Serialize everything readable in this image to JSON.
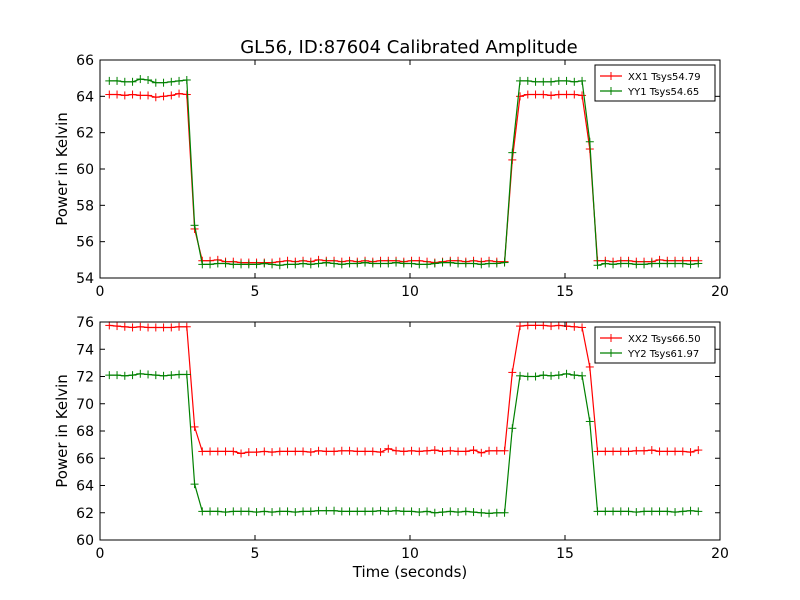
{
  "chart_data": [
    {
      "type": "line",
      "title": "GL56, ID:87604 Calibrated Amplitude",
      "xlabel": "",
      "ylabel": "Power in Kelvin",
      "xlim": [
        0,
        20
      ],
      "ylim": [
        54,
        66
      ],
      "xticks": [
        0,
        5,
        10,
        15,
        20
      ],
      "yticks": [
        54,
        56,
        58,
        60,
        62,
        64,
        66
      ],
      "grid": false,
      "legend": "top-right",
      "x": [
        0.3,
        0.55,
        0.8,
        1.05,
        1.3,
        1.55,
        1.8,
        2.05,
        2.3,
        2.55,
        2.8,
        3.05,
        3.3,
        3.55,
        3.8,
        4.05,
        4.3,
        4.55,
        4.8,
        5.05,
        5.3,
        5.55,
        5.8,
        6.05,
        6.3,
        6.55,
        6.8,
        7.05,
        7.3,
        7.55,
        7.8,
        8.05,
        8.3,
        8.55,
        8.8,
        9.05,
        9.3,
        9.55,
        9.8,
        10.05,
        10.3,
        10.55,
        10.8,
        11.05,
        11.3,
        11.55,
        11.8,
        12.05,
        12.3,
        12.55,
        12.8,
        13.05,
        13.3,
        13.55,
        13.8,
        14.05,
        14.3,
        14.55,
        14.8,
        15.05,
        15.3,
        15.55,
        15.8,
        16.05,
        16.3,
        16.55,
        16.8,
        17.05,
        17.3,
        17.55,
        17.8,
        18.05,
        18.3,
        18.55,
        18.8,
        19.05,
        19.3
      ],
      "series": [
        {
          "name": "XX1 Tsys54.79",
          "color": "#ff0000",
          "values": [
            64.1,
            64.1,
            64.05,
            64.1,
            64.05,
            64.05,
            63.95,
            64.0,
            64.05,
            64.15,
            64.1,
            56.7,
            54.95,
            54.95,
            55.0,
            54.9,
            54.9,
            54.85,
            54.85,
            54.85,
            54.85,
            54.85,
            54.9,
            54.95,
            54.9,
            54.95,
            54.9,
            55.0,
            54.95,
            54.95,
            54.9,
            54.95,
            54.9,
            54.95,
            54.9,
            54.95,
            54.95,
            54.95,
            54.9,
            54.95,
            54.95,
            54.9,
            54.85,
            54.9,
            54.95,
            54.95,
            54.9,
            54.95,
            54.9,
            54.95,
            54.9,
            54.9,
            60.5,
            64.0,
            64.1,
            64.1,
            64.1,
            64.05,
            64.1,
            64.1,
            64.1,
            64.05,
            61.1,
            54.95,
            54.95,
            54.9,
            54.95,
            54.95,
            54.9,
            54.9,
            54.9,
            55.0,
            54.95,
            54.95,
            54.95,
            54.95,
            54.95
          ]
        },
        {
          "name": "YY1 Tsys54.65",
          "color": "#008000",
          "values": [
            64.85,
            64.85,
            64.8,
            64.8,
            64.95,
            64.9,
            64.75,
            64.75,
            64.8,
            64.85,
            64.9,
            56.9,
            54.75,
            54.75,
            54.8,
            54.8,
            54.75,
            54.75,
            54.75,
            54.75,
            54.8,
            54.75,
            54.7,
            54.75,
            54.75,
            54.8,
            54.75,
            54.8,
            54.85,
            54.8,
            54.75,
            54.8,
            54.8,
            54.85,
            54.8,
            54.8,
            54.8,
            54.85,
            54.8,
            54.8,
            54.75,
            54.75,
            54.8,
            54.85,
            54.85,
            54.8,
            54.8,
            54.8,
            54.75,
            54.8,
            54.8,
            54.85,
            60.9,
            64.85,
            64.85,
            64.8,
            64.8,
            64.8,
            64.85,
            64.85,
            64.8,
            64.85,
            61.5,
            54.7,
            54.8,
            54.75,
            54.8,
            54.8,
            54.75,
            54.75,
            54.8,
            54.8,
            54.8,
            54.8,
            54.8,
            54.75,
            54.8
          ]
        }
      ]
    },
    {
      "type": "line",
      "title": "",
      "xlabel": "Time (seconds)",
      "ylabel": "Power in Kelvin",
      "xlim": [
        0,
        20
      ],
      "ylim": [
        60,
        76
      ],
      "xticks": [
        0,
        5,
        10,
        15,
        20
      ],
      "yticks": [
        60,
        62,
        64,
        66,
        68,
        70,
        72,
        74,
        76
      ],
      "grid": false,
      "legend": "top-right",
      "x": [
        0.3,
        0.55,
        0.8,
        1.05,
        1.3,
        1.55,
        1.8,
        2.05,
        2.3,
        2.55,
        2.8,
        3.05,
        3.3,
        3.55,
        3.8,
        4.05,
        4.3,
        4.55,
        4.8,
        5.05,
        5.3,
        5.55,
        5.8,
        6.05,
        6.3,
        6.55,
        6.8,
        7.05,
        7.3,
        7.55,
        7.8,
        8.05,
        8.3,
        8.55,
        8.8,
        9.05,
        9.3,
        9.55,
        9.8,
        10.05,
        10.3,
        10.55,
        10.8,
        11.05,
        11.3,
        11.55,
        11.8,
        12.05,
        12.3,
        12.55,
        12.8,
        13.05,
        13.3,
        13.55,
        13.8,
        14.05,
        14.3,
        14.55,
        14.8,
        15.05,
        15.3,
        15.55,
        15.8,
        16.05,
        16.3,
        16.55,
        16.8,
        17.05,
        17.3,
        17.55,
        17.8,
        18.05,
        18.3,
        18.55,
        18.8,
        19.05,
        19.3
      ],
      "series": [
        {
          "name": "XX2 Tsys66.50",
          "color": "#ff0000",
          "values": [
            75.75,
            75.7,
            75.65,
            75.6,
            75.65,
            75.6,
            75.6,
            75.6,
            75.6,
            75.65,
            75.65,
            68.3,
            66.5,
            66.5,
            66.5,
            66.5,
            66.5,
            66.35,
            66.45,
            66.45,
            66.5,
            66.45,
            66.5,
            66.5,
            66.5,
            66.5,
            66.45,
            66.55,
            66.5,
            66.5,
            66.55,
            66.55,
            66.5,
            66.5,
            66.5,
            66.45,
            66.7,
            66.55,
            66.5,
            66.55,
            66.5,
            66.55,
            66.6,
            66.5,
            66.55,
            66.5,
            66.5,
            66.6,
            66.4,
            66.55,
            66.55,
            66.55,
            72.3,
            75.7,
            75.75,
            75.75,
            75.75,
            75.7,
            75.75,
            75.7,
            75.65,
            75.6,
            72.7,
            66.5,
            66.5,
            66.5,
            66.5,
            66.5,
            66.55,
            66.55,
            66.6,
            66.5,
            66.5,
            66.5,
            66.5,
            66.45,
            66.6
          ]
        },
        {
          "name": "YY2 Tsys61.97",
          "color": "#008000",
          "values": [
            72.1,
            72.1,
            72.05,
            72.1,
            72.2,
            72.15,
            72.1,
            72.05,
            72.1,
            72.15,
            72.15,
            64.1,
            62.1,
            62.1,
            62.1,
            62.05,
            62.1,
            62.1,
            62.1,
            62.05,
            62.1,
            62.05,
            62.1,
            62.1,
            62.05,
            62.1,
            62.1,
            62.15,
            62.15,
            62.15,
            62.1,
            62.1,
            62.1,
            62.1,
            62.1,
            62.15,
            62.1,
            62.15,
            62.1,
            62.1,
            62.05,
            62.1,
            62.0,
            62.05,
            62.1,
            62.05,
            62.1,
            62.05,
            62.0,
            61.95,
            62.0,
            62.0,
            68.2,
            72.05,
            72.0,
            72.0,
            72.1,
            72.05,
            72.1,
            72.2,
            72.1,
            72.05,
            68.7,
            62.1,
            62.1,
            62.1,
            62.1,
            62.1,
            62.05,
            62.1,
            62.1,
            62.1,
            62.1,
            62.05,
            62.1,
            62.15,
            62.1
          ]
        }
      ]
    }
  ]
}
